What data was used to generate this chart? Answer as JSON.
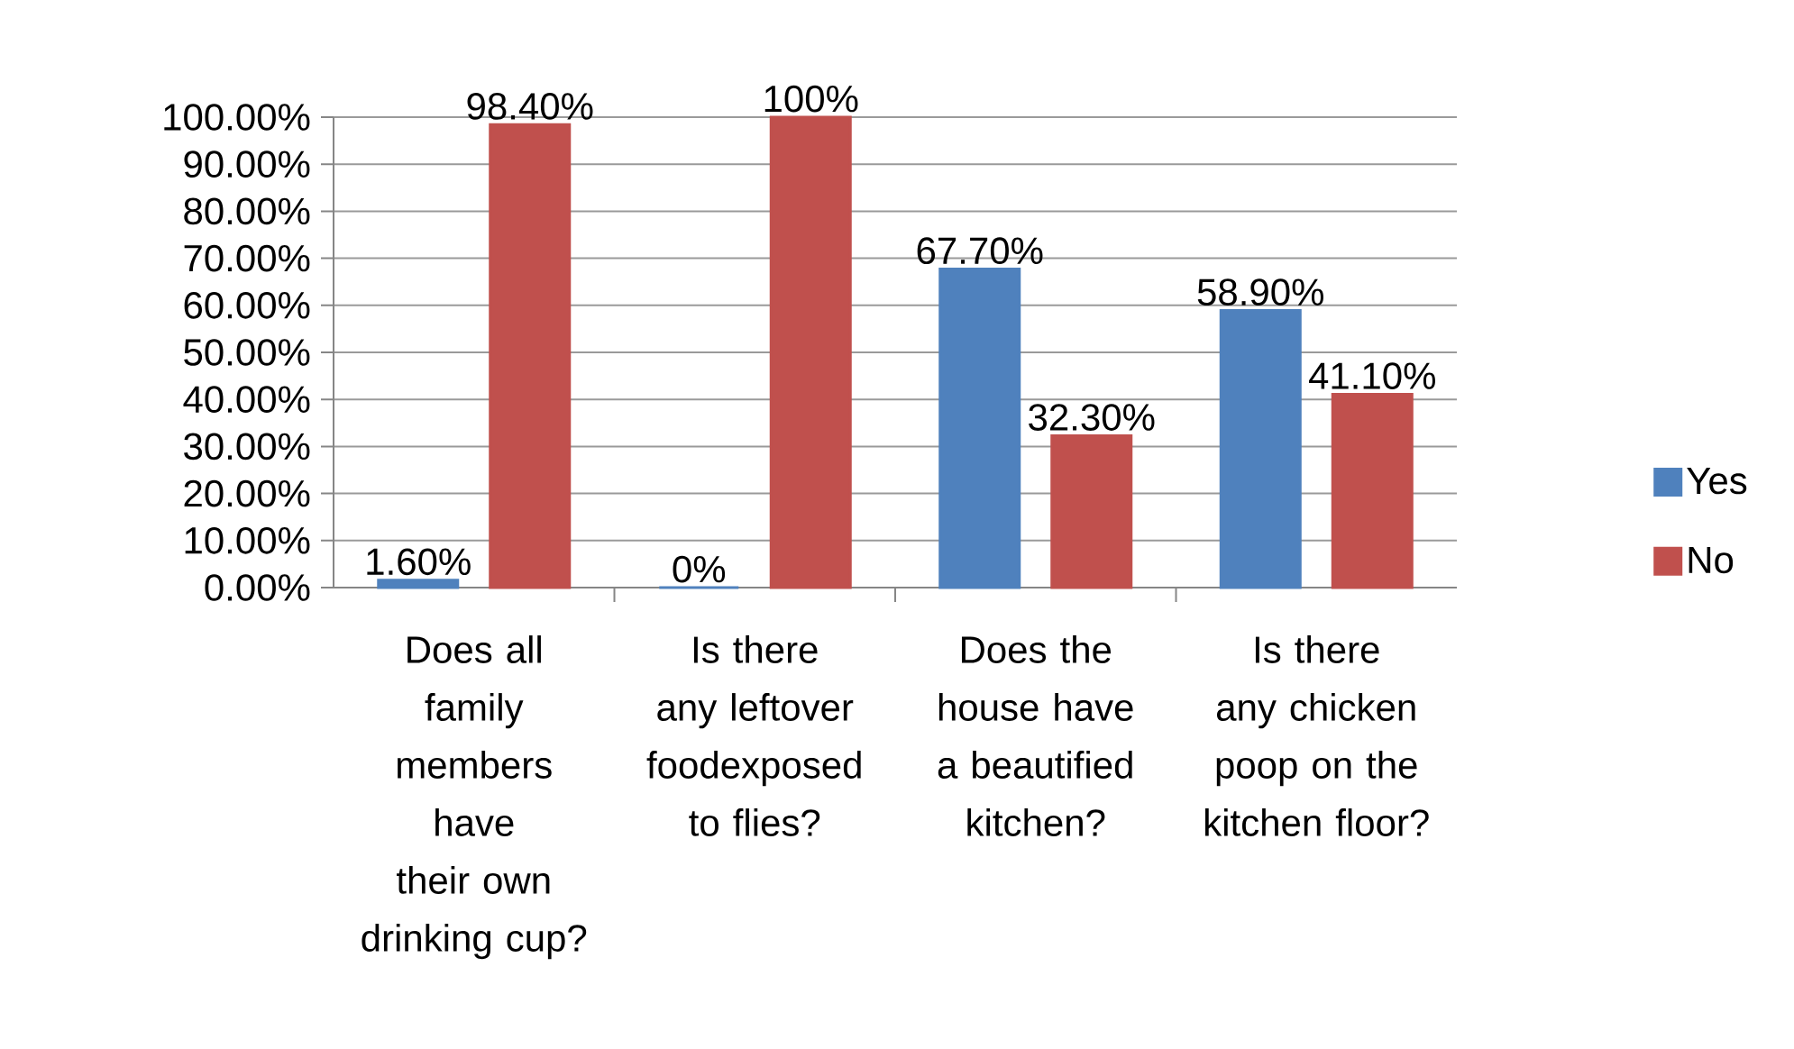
{
  "chart_data": {
    "type": "bar",
    "categories": [
      "Does all family members have their own drinking cup?",
      "Is there any leftover foodexposed to flies?",
      "Does the house have a beautified kitchen?",
      "Is there any chicken poop on the kitchen floor?"
    ],
    "series": [
      {
        "name": "Yes",
        "color": "#4f81bd",
        "values": [
          1.6,
          0,
          67.7,
          58.9
        ],
        "value_labels": [
          "1.60%",
          "0%",
          "67.70%",
          "58.90%"
        ]
      },
      {
        "name": "No",
        "color": "#c0504d",
        "values": [
          98.4,
          100,
          32.3,
          41.1
        ],
        "value_labels": [
          "98.40%",
          "100%",
          "32.30%",
          "41.10%"
        ]
      }
    ],
    "ylim": [
      0,
      100
    ],
    "yticks": [
      {
        "value": 0,
        "label": "0.00%"
      },
      {
        "value": 10,
        "label": "10.00%"
      },
      {
        "value": 20,
        "label": "20.00%"
      },
      {
        "value": 30,
        "label": "30.00%"
      },
      {
        "value": 40,
        "label": "40.00%"
      },
      {
        "value": 50,
        "label": "50.00%"
      },
      {
        "value": 60,
        "label": "60.00%"
      },
      {
        "value": 70,
        "label": "70.00%"
      },
      {
        "value": 80,
        "label": "80.00%"
      },
      {
        "value": 90,
        "label": "90.00%"
      },
      {
        "value": 100,
        "label": "100.00%"
      }
    ],
    "grid": "y",
    "legend": "right"
  }
}
